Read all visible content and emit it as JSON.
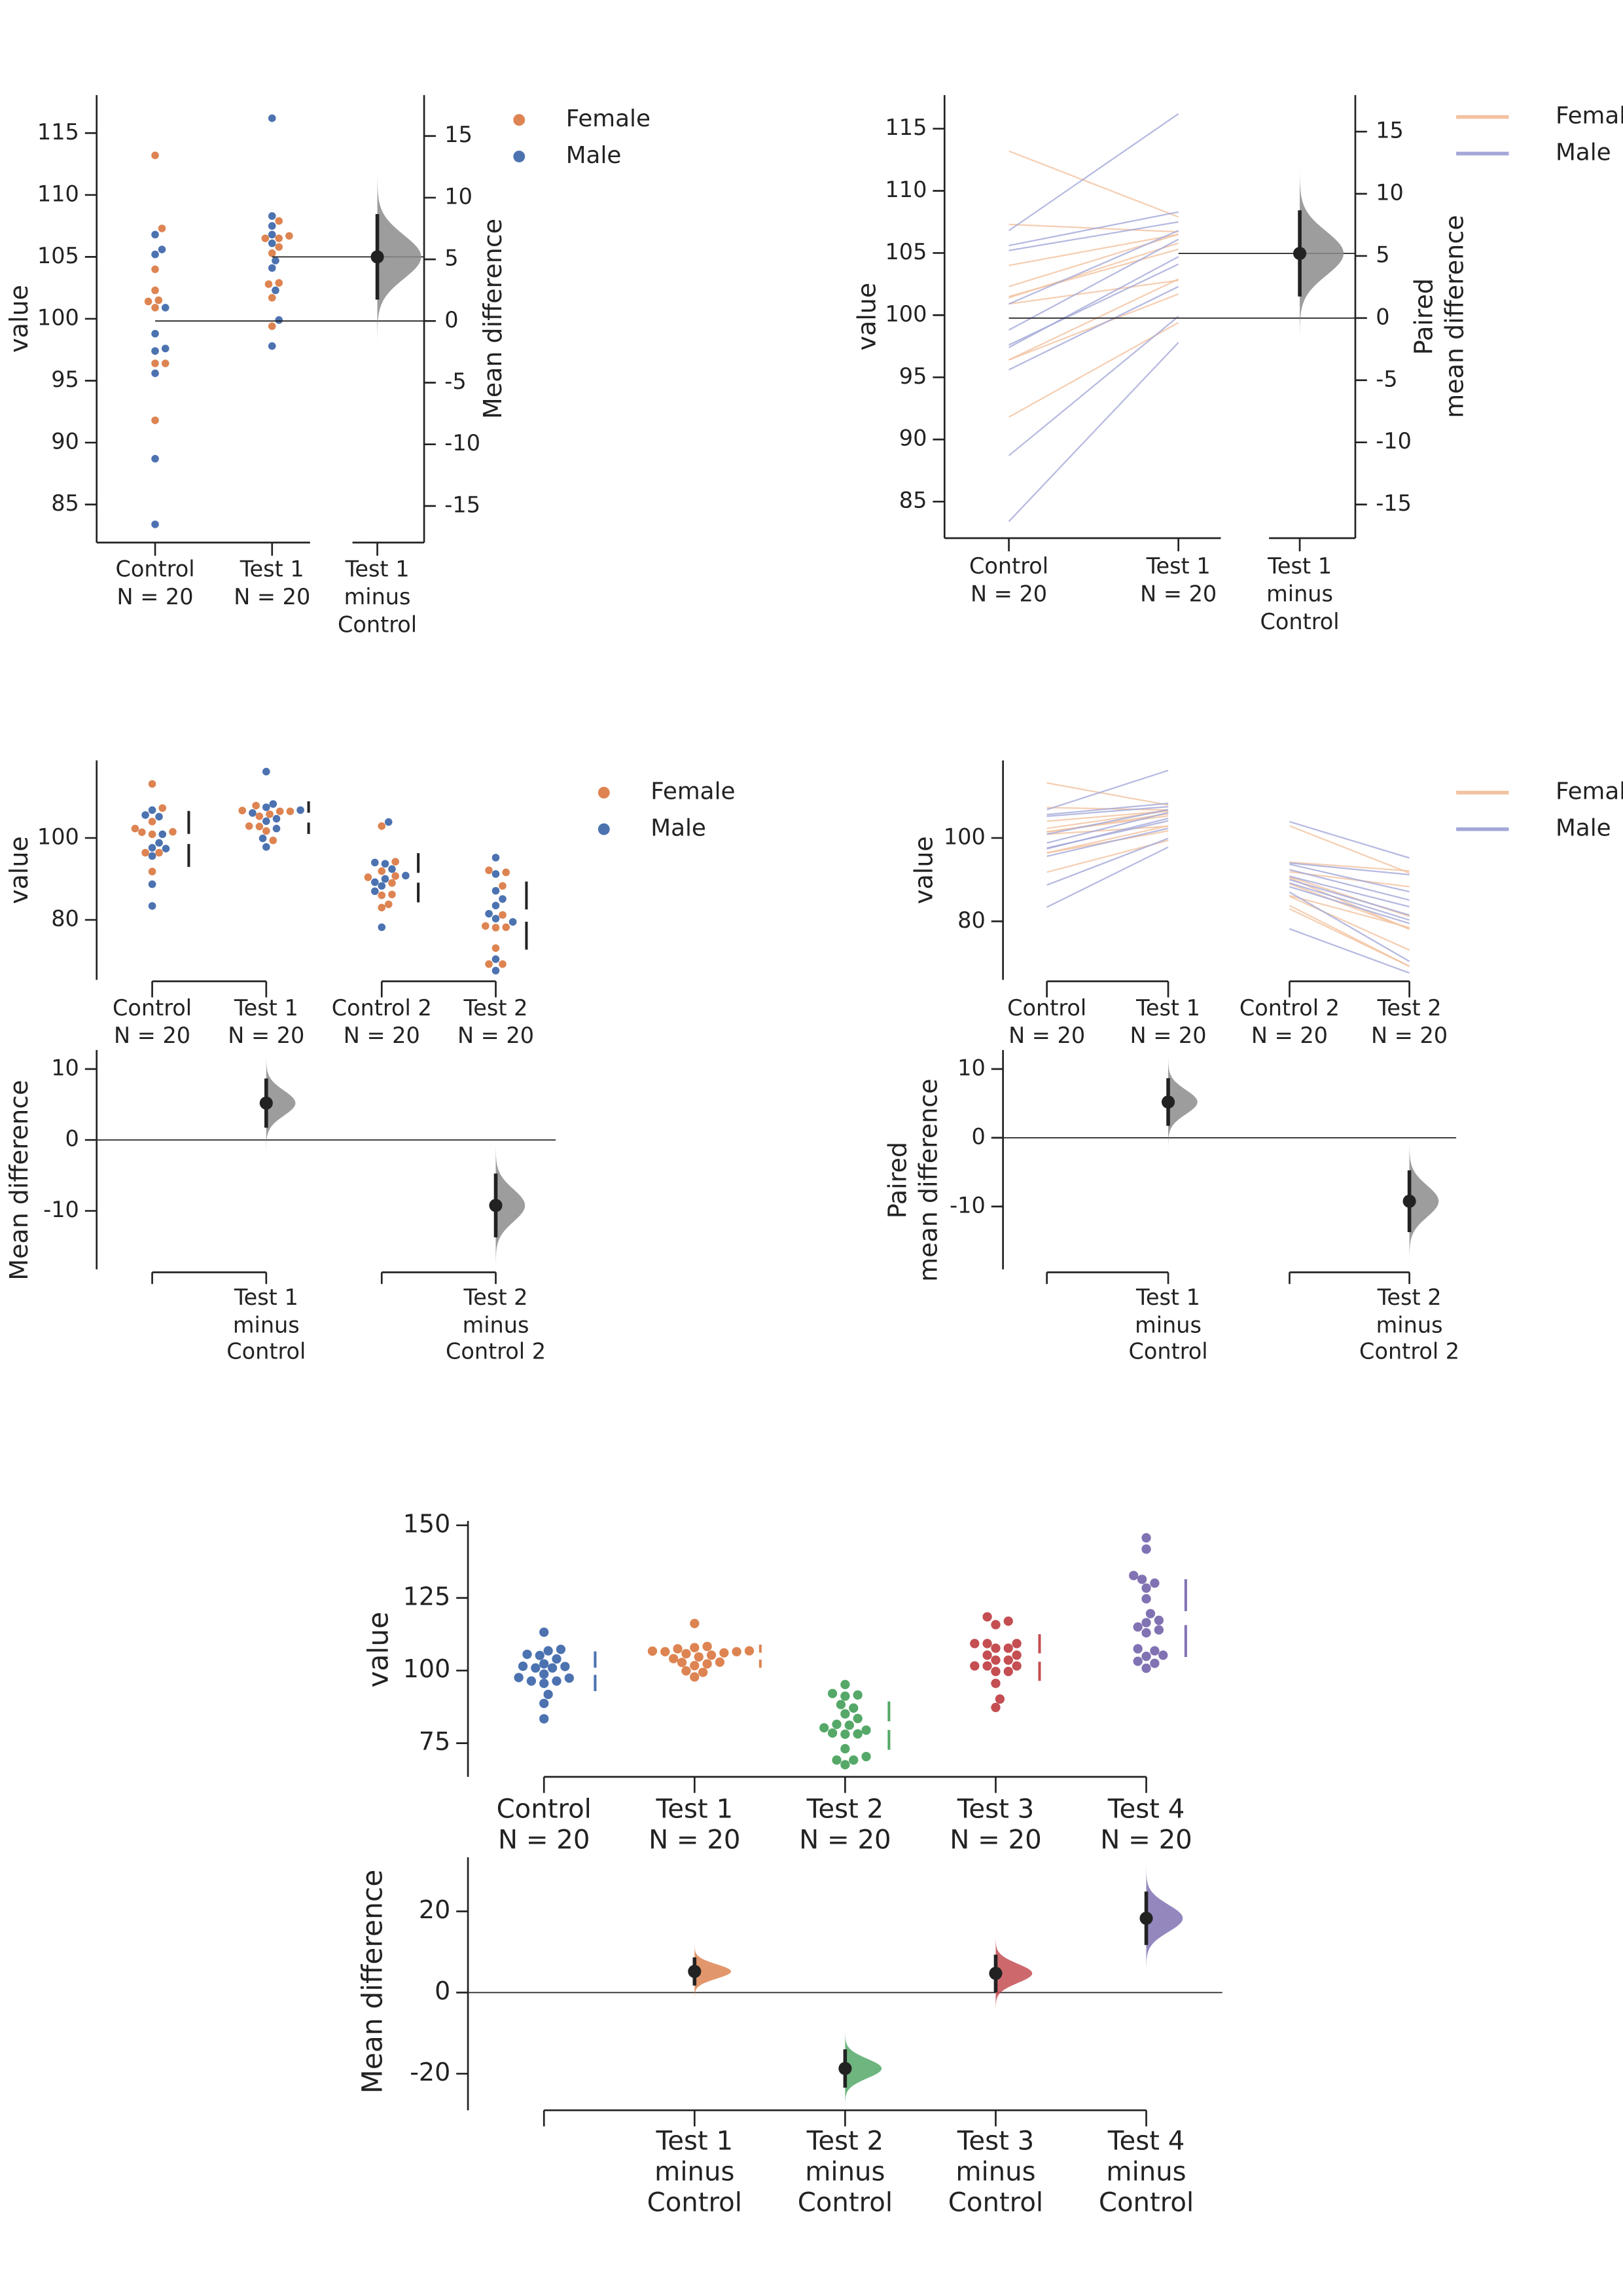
{
  "chart_data": {
    "type": "scatter",
    "colors": {
      "Female": "#dd8452",
      "Male": "#4c72b0",
      "Female_line": "#f2c29f",
      "Male_line": "#a3a8d8",
      "Control": "#4c72b0",
      "Test 1": "#dd8452",
      "Test 2": "#55a868",
      "Test 3": "#c44e52",
      "Test 4": "#8172b3",
      "delta_fill": "#8c8c8c"
    },
    "legend_entries": [
      "Female",
      "Male"
    ],
    "groups": {
      "Control": {
        "Female": [
          113.2,
          107.3,
          104.0,
          102.3,
          101.4,
          101.5,
          100.9,
          96.4,
          96.4,
          91.8
        ],
        "Male": [
          106.8,
          105.6,
          105.2,
          100.9,
          98.8,
          97.4,
          97.6,
          95.6,
          88.7,
          83.4
        ]
      },
      "Test 1": {
        "Female": [
          107.9,
          106.7,
          106.5,
          106.5,
          105.8,
          105.3,
          102.8,
          102.9,
          101.7,
          99.4
        ],
        "Male": [
          116.2,
          108.3,
          107.5,
          106.8,
          106.1,
          104.7,
          104.1,
          102.3,
          99.9,
          97.8
        ]
      },
      "Control 2": {
        "Female": [
          102.9,
          94.2,
          91.9,
          90.7,
          90.4,
          89.0,
          86.2,
          86.0,
          83.8,
          83.0
        ],
        "Male": [
          103.9,
          94.0,
          93.7,
          92.4,
          90.8,
          90.0,
          89.2,
          88.3,
          87.0,
          78.2
        ]
      },
      "Test 2": {
        "Female": [
          91.6,
          92.1,
          88.3,
          81.2,
          78.1,
          78.2,
          78.5,
          73.1,
          69.2,
          69.2
        ],
        "Male": [
          95.2,
          91.2,
          87.1,
          85.1,
          83.5,
          81.5,
          80.3,
          79.5,
          70.4,
          67.6
        ]
      },
      "Test 3": {
        "all": [
          118.5,
          117.0,
          115.8,
          109.3,
          109.3,
          109.3,
          107.7,
          107.7,
          105.3,
          105.3,
          103.6,
          103.6,
          101.6,
          101.6,
          101.6,
          99.7,
          99.7,
          95.6,
          90.2,
          87.3
        ]
      },
      "Test 4": {
        "all": [
          145.7,
          141.8,
          132.7,
          131.4,
          130.1,
          128.4,
          124.7,
          119.6,
          117.3,
          116.5,
          115.0,
          114.0,
          113.0,
          107.5,
          106.8,
          105.3,
          104.9,
          103.2,
          102.5,
          100.8
        ]
      }
    },
    "panels": [
      {
        "kind": "gardner-altman",
        "paired": false,
        "color_by": "gender",
        "groups": [
          "Control",
          "Test 1"
        ],
        "x_labels": [
          [
            "Control",
            "N = 20"
          ],
          [
            "Test 1",
            "N = 20"
          ]
        ],
        "ylabel": "value",
        "yticks": [
          85,
          90,
          95,
          100,
          105,
          110,
          115
        ],
        "delta_ylabel": [
          "Mean difference"
        ],
        "delta_ticks": [
          -15,
          -10,
          -5,
          0,
          5,
          10,
          15
        ],
        "delta_labels": [
          [
            "Test 1",
            "minus",
            "Control"
          ]
        ],
        "legend": "marker",
        "legend_position": "right"
      },
      {
        "kind": "gardner-altman",
        "paired": true,
        "color_by": "gender",
        "groups": [
          "Control",
          "Test 1"
        ],
        "x_labels": [
          [
            "Control",
            "N = 20"
          ],
          [
            "Test 1",
            "N = 20"
          ]
        ],
        "ylabel": "value",
        "yticks": [
          85,
          90,
          95,
          100,
          105,
          110,
          115
        ],
        "delta_ylabel": [
          "Paired",
          "mean difference"
        ],
        "delta_ticks": [
          -15,
          -10,
          -5,
          0,
          5,
          10,
          15
        ],
        "delta_labels": [
          [
            "Test 1",
            "minus",
            "Control"
          ]
        ],
        "legend": "line",
        "legend_position": "right"
      },
      {
        "kind": "cumming",
        "paired": false,
        "color_by": "gender",
        "groups": [
          "Control",
          "Test 1",
          "Control 2",
          "Test 2"
        ],
        "comparisons": [
          [
            "Control",
            "Test 1"
          ],
          [
            "Control 2",
            "Test 2"
          ]
        ],
        "x_labels": [
          [
            "Control",
            "N = 20"
          ],
          [
            "Test 1",
            "N = 20"
          ],
          [
            "Control 2",
            "N = 20"
          ],
          [
            "Test 2",
            "N = 20"
          ]
        ],
        "ylabel": "value",
        "yticks": [
          80,
          100
        ],
        "delta_ylabel": [
          "Mean difference"
        ],
        "delta_ticks": [
          -10,
          0,
          10
        ],
        "delta_labels": [
          [
            "Test 1",
            "minus",
            "Control"
          ],
          [
            "Test 2",
            "minus",
            "Control 2"
          ]
        ],
        "legend": "marker",
        "legend_position": "right"
      },
      {
        "kind": "cumming",
        "paired": true,
        "color_by": "gender",
        "groups": [
          "Control",
          "Test 1",
          "Control 2",
          "Test 2"
        ],
        "comparisons": [
          [
            "Control",
            "Test 1"
          ],
          [
            "Control 2",
            "Test 2"
          ]
        ],
        "x_labels": [
          [
            "Control",
            "N = 20"
          ],
          [
            "Test 1",
            "N = 20"
          ],
          [
            "Control 2",
            "N = 20"
          ],
          [
            "Test 2",
            "N = 20"
          ]
        ],
        "ylabel": "value",
        "yticks": [
          80,
          100
        ],
        "delta_ylabel": [
          "Paired",
          "mean difference"
        ],
        "delta_ticks": [
          -10,
          0,
          10
        ],
        "delta_labels": [
          [
            "Test 1",
            "minus",
            "Control"
          ],
          [
            "Test 2",
            "minus",
            "Control 2"
          ]
        ],
        "legend": "line",
        "legend_position": "right"
      },
      {
        "kind": "cumming-shared-control",
        "paired": false,
        "color_by": "group",
        "groups": [
          "Control",
          "Test 1",
          "Test 2",
          "Test 3",
          "Test 4"
        ],
        "x_labels": [
          [
            "Control",
            "N = 20"
          ],
          [
            "Test 1",
            "N = 20"
          ],
          [
            "Test 2",
            "N = 20"
          ],
          [
            "Test 3",
            "N = 20"
          ],
          [
            "Test 4",
            "N = 20"
          ]
        ],
        "ylabel": "value",
        "yticks": [
          75,
          100,
          125,
          150
        ],
        "delta_ylabel": [
          "Mean difference"
        ],
        "delta_ticks": [
          -20,
          0,
          20
        ],
        "delta_labels": [
          [
            "Test 1",
            "minus",
            "Control"
          ],
          [
            "Test 2",
            "minus",
            "Control"
          ],
          [
            "Test 3",
            "minus",
            "Control"
          ],
          [
            "Test 4",
            "minus",
            "Control"
          ]
        ],
        "legend": "none"
      }
    ]
  }
}
